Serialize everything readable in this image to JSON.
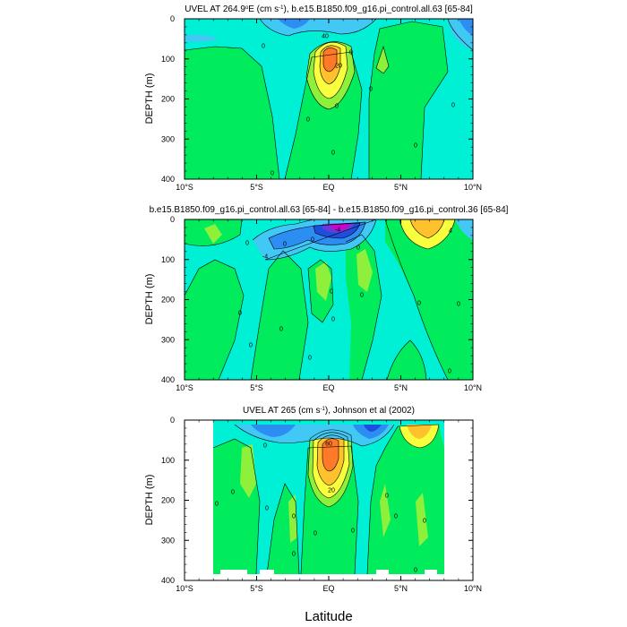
{
  "figure": {
    "xlabel": "Latitude",
    "colors": {
      "neg_deep": "#d100d1",
      "neg_purple": "#6a3ad6",
      "neg_dark": "#1e4ee0",
      "neg_mid": "#2c8ef2",
      "neg_light": "#41c8f4",
      "base_cyan": "#00f0d6",
      "pos_light": "#00ec5c",
      "pos_mid": "#8ef03a",
      "pos_yellow": "#f8ff3c",
      "pos_orange": "#ffc22c",
      "pos_red": "#ff7a28",
      "white": "#ffffff"
    }
  },
  "chart_data": [
    {
      "type": "contour",
      "title_prefix": "UVEL AT 264.9",
      "title_degE": "E (cm s",
      "title_exp": "-1",
      "title_suffix": "), b.e15.B1850.f09_g16.pi_control.all.63 [65-84]",
      "ylabel": "DEPTH (m)",
      "xlim": [
        -10,
        10
      ],
      "ylim": [
        400,
        0
      ],
      "x_tick_labels": [
        "10°S",
        "5°S",
        "EQ",
        "5°N",
        "10°N"
      ],
      "y_tick_labels": [
        "0",
        "100",
        "200",
        "300",
        "400"
      ],
      "contour_labels": [
        "0",
        "40",
        "20",
        "0",
        "0",
        "0",
        "0",
        "0",
        "0",
        "0",
        "0"
      ],
      "features": [
        {
          "kind": "jet",
          "center_lat": 0,
          "center_depth_m": 70,
          "max_value": 40
        }
      ]
    },
    {
      "type": "contour",
      "title": "b.e15.B1850.f09_g16.pi_control.all.63 [65-84] - b.e15.B1850.f09_g16.pi_control.36 [65-84]",
      "ylabel": "DEPTH (m)",
      "xlim": [
        -10,
        10
      ],
      "ylim": [
        400,
        0
      ],
      "x_tick_labels": [
        "10°S",
        "5°S",
        "EQ",
        "5°N",
        "10°N"
      ],
      "y_tick_labels": [
        "0",
        "100",
        "200",
        "300",
        "400"
      ],
      "contour_labels": [
        "-4",
        "0",
        "0",
        "-4",
        "0",
        "4",
        "0",
        "0",
        "0",
        "0",
        "0",
        "0",
        "0",
        "0",
        "0",
        "0",
        "0"
      ]
    },
    {
      "type": "contour",
      "title_prefix": "UVEL AT 265 (cm s",
      "title_exp": "-1",
      "title_suffix": "), Johnson et al (2002)",
      "ylabel": "DEPTH (m)",
      "xlim": [
        -10,
        10
      ],
      "ylim": [
        400,
        0
      ],
      "data_xlim": [
        -8,
        8
      ],
      "x_tick_labels": [
        "10°S",
        "5°S",
        "EQ",
        "5°N",
        "10°N"
      ],
      "y_tick_labels": [
        "0",
        "100",
        "200",
        "300",
        "400"
      ],
      "contour_labels": [
        "0",
        "60",
        "20",
        "0",
        "0",
        "0",
        "0",
        "0",
        "0",
        "0",
        "0",
        "0",
        "0",
        "0"
      ],
      "features": [
        {
          "kind": "jet",
          "center_lat": 0,
          "center_depth_m": 70,
          "max_value": 60
        }
      ]
    }
  ]
}
